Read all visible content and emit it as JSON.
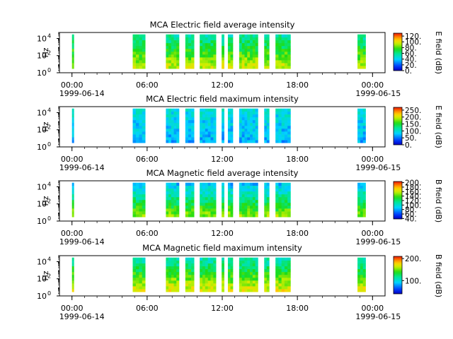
{
  "figure": {
    "source": "MCA"
  },
  "time_axis": {
    "ticks": [
      "00:00",
      "06:00",
      "12:00",
      "18:00",
      "00:00"
    ],
    "tick_hours": [
      0,
      6,
      12,
      18,
      24
    ],
    "dates": [
      "1999-06-14",
      "1999-06-15"
    ],
    "xlim_hours": [
      -1,
      25
    ],
    "minor_tick_hours": 1
  },
  "data_intervals_hours": [
    [
      0.0,
      0.15
    ],
    [
      4.85,
      5.85
    ],
    [
      7.5,
      8.55
    ],
    [
      9.05,
      9.75
    ],
    [
      10.2,
      11.5
    ],
    [
      11.95,
      12.15
    ],
    [
      12.45,
      12.85
    ],
    [
      13.35,
      14.85
    ],
    [
      15.35,
      15.75
    ],
    [
      16.25,
      17.45
    ],
    [
      22.8,
      23.45
    ]
  ],
  "chart_data": [
    {
      "type": "heatmap",
      "title": "MCA  Electric field average intensity",
      "ylabel": "Hz",
      "ylog": true,
      "ylim": [
        1,
        50000
      ],
      "yticks": [
        "10",
        "10",
        "10"
      ],
      "ytick_exponents": [
        "0",
        "2",
        "4"
      ],
      "colorbar": {
        "label": "E field (dB)",
        "range": [
          0,
          130
        ],
        "ticks": [
          "0.",
          "20.",
          "40.",
          "60.",
          "80.",
          "100.",
          "120."
        ],
        "tick_values": [
          0,
          20,
          40,
          60,
          80,
          100,
          120
        ]
      },
      "level_low_freq_db": 95,
      "level_high_freq_db": 55
    },
    {
      "type": "heatmap",
      "title": "MCA  Electric field maximum intensity",
      "ylabel": "Hz",
      "ylog": true,
      "ylim": [
        1,
        50000
      ],
      "yticks": [
        "10",
        "10",
        "10"
      ],
      "ytick_exponents": [
        "0",
        "2",
        "4"
      ],
      "colorbar": {
        "label": "E field (dB)",
        "range": [
          0,
          270
        ],
        "ticks": [
          "0.",
          "50.",
          "100.",
          "150.",
          "200.",
          "250."
        ],
        "tick_values": [
          0,
          50,
          100,
          150,
          200,
          250
        ]
      },
      "level_low_freq_db": 70,
      "level_high_freq_db": 95
    },
    {
      "type": "heatmap",
      "title": "MCA  Magnetic field average intensity",
      "ylabel": "Hz",
      "ylog": true,
      "ylim": [
        1,
        50000
      ],
      "yticks": [
        "10",
        "10",
        "10"
      ],
      "ytick_exponents": [
        "0",
        "2",
        "4"
      ],
      "colorbar": {
        "label": "B field (dB)",
        "range": [
          38,
          205
        ],
        "ticks": [
          "40.",
          "60.",
          "80.",
          "100.",
          "120.",
          "140.",
          "160.",
          "180.",
          "200."
        ],
        "tick_values": [
          40,
          60,
          80,
          100,
          120,
          140,
          160,
          180,
          200
        ]
      },
      "level_low_freq_db": 150,
      "level_high_freq_db": 85
    },
    {
      "type": "heatmap",
      "title": "MCA  Magnetic field maximum intensity",
      "ylabel": "Hz",
      "ylog": true,
      "ylim": [
        1,
        50000
      ],
      "yticks": [
        "10",
        "10",
        "10"
      ],
      "ytick_exponents": [
        "0",
        "2",
        "4"
      ],
      "colorbar": {
        "label": "B field (dB)",
        "range": [
          40,
          210
        ],
        "ticks": [
          "100.",
          "200."
        ],
        "tick_values": [
          100,
          200
        ]
      },
      "level_low_freq_db": 170,
      "level_high_freq_db": 110
    }
  ]
}
